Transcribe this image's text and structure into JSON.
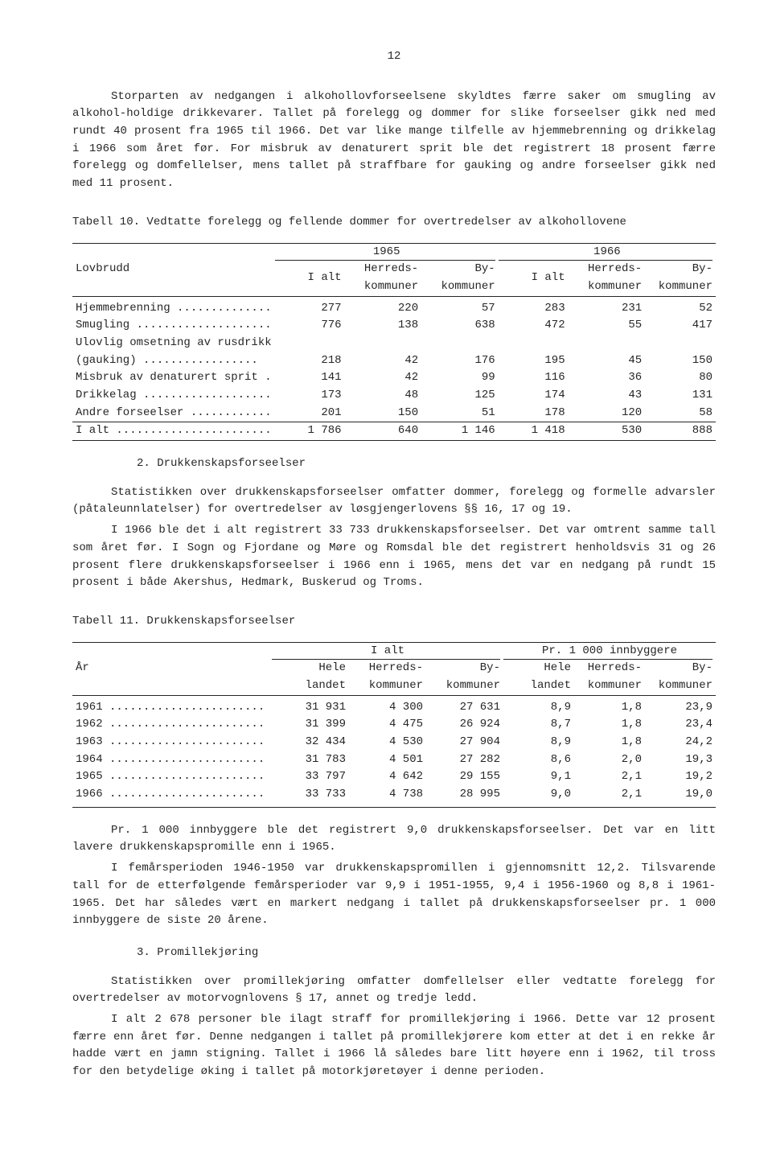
{
  "page_number": "12",
  "intro": {
    "p1": "Storparten av nedgangen i alkohollovforseelsene skyldtes færre saker om smugling av alkohol-holdige drikkevarer.  Tallet på forelegg og dommer for slike forseelser gikk ned med rundt 40 prosent fra 1965 til 1966.  Det var like mange tilfelle av hjemmebrenning og drikkelag i 1966 som året før.  For misbruk av denaturert sprit ble det registrert 18 prosent færre forelegg og domfellelser, mens tallet på straffbare for gauking og andre forseelser gikk ned med 11 prosent."
  },
  "table10": {
    "title": "Tabell 10.  Vedtatte forelegg og fellende dommer for overtredelser av alkohollovene",
    "row_header": "Lovbrudd",
    "year_a": "1965",
    "year_b": "1966",
    "cols": {
      "ialt": "I alt",
      "herreds": "Herreds-\nkommuner",
      "by": "By-\nkommuner"
    },
    "rows": [
      {
        "label": "Hjemmebrenning ..............",
        "a": [
          "277",
          "220",
          "57"
        ],
        "b": [
          "283",
          "231",
          "52"
        ]
      },
      {
        "label": "Smugling ....................",
        "a": [
          "776",
          "138",
          "638"
        ],
        "b": [
          "472",
          "55",
          "417"
        ]
      },
      {
        "label": "Ulovlig omsetning av rusdrikk",
        "a": [
          "",
          "",
          ""
        ],
        "b": [
          "",
          "",
          ""
        ]
      },
      {
        "label": "  (gauking) .................",
        "a": [
          "218",
          "42",
          "176"
        ],
        "b": [
          "195",
          "45",
          "150"
        ]
      },
      {
        "label": "Misbruk av denaturert sprit .",
        "a": [
          "141",
          "42",
          "99"
        ],
        "b": [
          "116",
          "36",
          "80"
        ]
      },
      {
        "label": "Drikkelag ...................",
        "a": [
          "173",
          "48",
          "125"
        ],
        "b": [
          "174",
          "43",
          "131"
        ]
      },
      {
        "label": "Andre forseelser ............",
        "a": [
          "201",
          "150",
          "51"
        ],
        "b": [
          "178",
          "120",
          "58"
        ]
      }
    ],
    "total": {
      "label": "I alt .......................",
      "a": [
        "1 786",
        "640",
        "1 146"
      ],
      "b": [
        "1 418",
        "530",
        "888"
      ]
    }
  },
  "section2": {
    "heading": "2.  Drukkenskapsforseelser",
    "p1": "Statistikken over drukkenskapsforseelser omfatter dommer, forelegg og formelle advarsler (påtaleunnlatelser) for overtredelser av løsgjengerlovens §§ 16, 17 og 19.",
    "p2": "I 1966 ble det i alt registrert 33 733 drukkenskapsforseelser.  Det var omtrent samme tall som året før.  I Sogn og Fjordane og Møre og Romsdal ble det registrert henholdsvis 31 og 26 prosent flere drukkenskapsforseelser i 1966 enn i 1965, mens det var en nedgang på rundt 15 prosent i både Akershus, Hedmark, Buskerud og Troms."
  },
  "table11": {
    "title": "Tabell 11.  Drukkenskapsforseelser",
    "row_header": "År",
    "grp_a": "I alt",
    "grp_b": "Pr. 1 000 innbyggere",
    "cols": {
      "hele": "Hele\nlandet",
      "herreds": "Herreds-\nkommuner",
      "by": "By-\nkommuner"
    },
    "rows": [
      {
        "label": "1961 .......................",
        "a": [
          "31 931",
          "4 300",
          "27 631"
        ],
        "b": [
          "8,9",
          "1,8",
          "23,9"
        ]
      },
      {
        "label": "1962 .......................",
        "a": [
          "31 399",
          "4 475",
          "26 924"
        ],
        "b": [
          "8,7",
          "1,8",
          "23,4"
        ]
      },
      {
        "label": "1963 .......................",
        "a": [
          "32 434",
          "4 530",
          "27 904"
        ],
        "b": [
          "8,9",
          "1,8",
          "24,2"
        ]
      },
      {
        "label": "1964 .......................",
        "a": [
          "31 783",
          "4 501",
          "27 282"
        ],
        "b": [
          "8,6",
          "2,0",
          "19,3"
        ]
      },
      {
        "label": "1965 .......................",
        "a": [
          "33 797",
          "4 642",
          "29 155"
        ],
        "b": [
          "9,1",
          "2,1",
          "19,2"
        ]
      },
      {
        "label": "1966 .......................",
        "a": [
          "33 733",
          "4 738",
          "28 995"
        ],
        "b": [
          "9,0",
          "2,1",
          "19,0"
        ]
      }
    ]
  },
  "after11": {
    "p1": "Pr. 1 000 innbyggere ble det registrert 9,0 drukkenskapsforseelser.  Det var en litt lavere drukkenskapspromille enn i 1965.",
    "p2": "I femårsperioden 1946-1950 var drukkenskapspromillen i gjennomsnitt 12,2.  Tilsvarende tall for de etterfølgende femårsperioder var 9,9 i 1951-1955, 9,4 i 1956-1960 og 8,8 i 1961-1965.  Det har således vært en markert nedgang i tallet på drukkenskapsforseelser pr. 1 000 innbyggere de siste 20 årene."
  },
  "section3": {
    "heading": "3.  Promillekjøring",
    "p1": "Statistikken over promillekjøring omfatter domfellelser eller vedtatte forelegg for overtredelser av motorvognlovens § 17, annet og tredje ledd.",
    "p2": "I alt 2 678 personer ble ilagt straff for promillekjøring i 1966.  Dette var 12 prosent færre enn året før.  Denne nedgangen i tallet på promillekjørere kom etter at det i en rekke år hadde vært en jamn stigning.  Tallet i 1966 lå således bare litt høyere enn i 1962, til tross for den betydelige øking i tallet på motorkjøretøyer i denne perioden."
  }
}
